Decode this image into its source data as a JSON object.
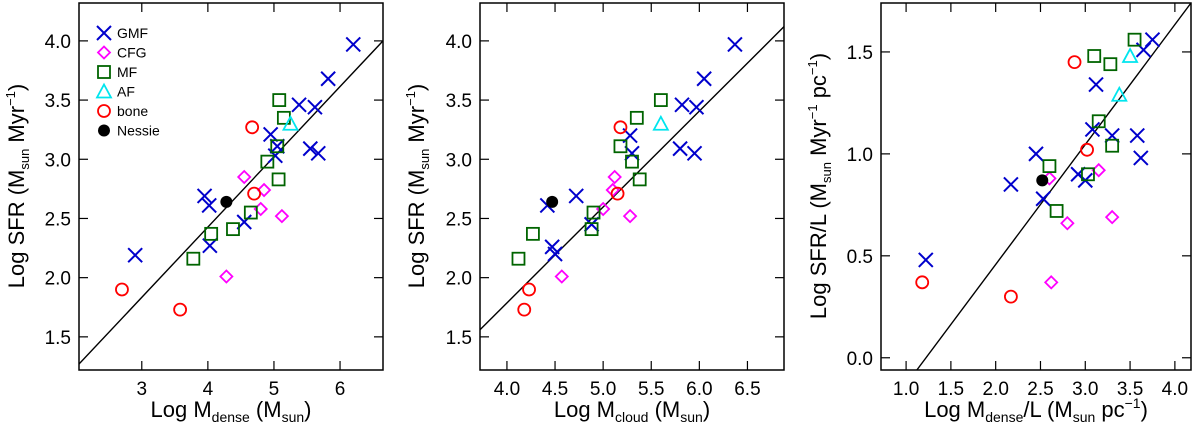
{
  "chart_data": [
    {
      "type": "scatter",
      "xlabel": "Log M_dense (M_sun)",
      "ylabel": "Log SFR (M_sun Myr^-1)",
      "xlim": [
        2.05,
        6.65
      ],
      "ylim": [
        1.22,
        4.32
      ],
      "xticks": [
        3,
        4,
        5,
        6
      ],
      "yticks": [
        1.5,
        2.0,
        2.5,
        3.0,
        3.5,
        4.0
      ],
      "xtick_labels": [
        "3",
        "4",
        "5",
        "6"
      ],
      "ytick_labels": [
        "1.5",
        "2.0",
        "2.5",
        "3.0",
        "3.5",
        "4.0"
      ],
      "fit_line": [
        [
          2.05,
          1.27
        ],
        [
          6.65,
          4.0
        ]
      ],
      "series": [
        {
          "name": "GMF",
          "marker": "x",
          "color": "#0000cc",
          "points": [
            [
              2.9,
              2.19
            ],
            [
              3.95,
              2.69
            ],
            [
              4.02,
              2.61
            ],
            [
              4.03,
              2.27
            ],
            [
              4.55,
              2.47
            ],
            [
              4.95,
              3.21
            ],
            [
              5.02,
              3.03
            ],
            [
              5.05,
              3.11
            ],
            [
              5.38,
              3.46
            ],
            [
              5.55,
              3.09
            ],
            [
              5.62,
              3.44
            ],
            [
              5.67,
              3.05
            ],
            [
              5.82,
              3.68
            ],
            [
              6.2,
              3.97
            ]
          ]
        },
        {
          "name": "CFG",
          "marker": "diamond",
          "color": "#ff00ff",
          "points": [
            [
              4.28,
              2.01
            ],
            [
              4.55,
              2.85
            ],
            [
              4.8,
              2.58
            ],
            [
              4.85,
              2.74
            ],
            [
              5.12,
              2.52
            ]
          ]
        },
        {
          "name": "MF",
          "marker": "square",
          "color": "#006400",
          "points": [
            [
              3.78,
              2.16
            ],
            [
              4.05,
              2.37
            ],
            [
              4.38,
              2.41
            ],
            [
              4.65,
              2.55
            ],
            [
              4.9,
              2.98
            ],
            [
              5.05,
              3.11
            ],
            [
              5.07,
              2.83
            ],
            [
              5.08,
              3.5
            ],
            [
              5.15,
              3.35
            ]
          ]
        },
        {
          "name": "AF",
          "marker": "triangle",
          "color": "#00e5ee",
          "points": [
            [
              5.25,
              3.3
            ]
          ]
        },
        {
          "name": "bone",
          "marker": "circle",
          "color": "#ff0000",
          "points": [
            [
              2.7,
              1.9
            ],
            [
              3.58,
              1.73
            ],
            [
              4.67,
              3.27
            ],
            [
              4.7,
              2.71
            ]
          ]
        },
        {
          "name": "Nessie",
          "marker": "filled-circle",
          "color": "#000000",
          "points": [
            [
              4.28,
              2.64
            ]
          ]
        }
      ],
      "legend": {
        "position": "top-left",
        "entries": [
          {
            "label": "GMF",
            "marker": "x",
            "color": "#0000cc"
          },
          {
            "label": "CFG",
            "marker": "diamond",
            "color": "#ff00ff"
          },
          {
            "label": "MF",
            "marker": "square",
            "color": "#006400"
          },
          {
            "label": "AF",
            "marker": "triangle",
            "color": "#00e5ee"
          },
          {
            "label": "bone",
            "marker": "circle",
            "color": "#ff0000"
          },
          {
            "label": "Nessie",
            "marker": "filled-circle",
            "color": "#000000"
          }
        ]
      }
    },
    {
      "type": "scatter",
      "xlabel": "Log M_cloud (M_sun)",
      "ylabel": "Log SFR (M_sun Myr^-1)",
      "xlim": [
        3.72,
        6.88
      ],
      "ylim": [
        1.22,
        4.32
      ],
      "xticks": [
        4.0,
        4.5,
        5.0,
        5.5,
        6.0,
        6.5
      ],
      "yticks": [
        1.5,
        2.0,
        2.5,
        3.0,
        3.5,
        4.0
      ],
      "xtick_labels": [
        "4.0",
        "4.5",
        "5.0",
        "5.5",
        "6.0",
        "6.5"
      ],
      "ytick_labels": [
        "1.5",
        "2.0",
        "2.5",
        "3.0",
        "3.5",
        "4.0"
      ],
      "fit_line": [
        [
          3.72,
          1.56
        ],
        [
          6.88,
          4.12
        ]
      ],
      "series": [
        {
          "name": "GMF",
          "marker": "x",
          "color": "#0000cc",
          "points": [
            [
              4.42,
              2.61
            ],
            [
              4.47,
              2.26
            ],
            [
              4.5,
              2.2
            ],
            [
              4.72,
              2.69
            ],
            [
              4.88,
              2.45
            ],
            [
              5.28,
              3.2
            ],
            [
              5.3,
              3.05
            ],
            [
              5.8,
              3.09
            ],
            [
              5.82,
              3.46
            ],
            [
              5.97,
              3.44
            ],
            [
              5.95,
              3.05
            ],
            [
              6.05,
              3.68
            ],
            [
              6.37,
              3.97
            ]
          ]
        },
        {
          "name": "CFG",
          "marker": "diamond",
          "color": "#ff00ff",
          "points": [
            [
              4.57,
              2.01
            ],
            [
              5.0,
              2.58
            ],
            [
              5.1,
              2.74
            ],
            [
              5.12,
              2.85
            ],
            [
              5.28,
              2.52
            ]
          ]
        },
        {
          "name": "MF",
          "marker": "square",
          "color": "#006400",
          "points": [
            [
              4.12,
              2.16
            ],
            [
              4.27,
              2.37
            ],
            [
              4.88,
              2.41
            ],
            [
              4.9,
              2.55
            ],
            [
              5.18,
              3.11
            ],
            [
              5.3,
              2.98
            ],
            [
              5.35,
              3.35
            ],
            [
              5.38,
              2.83
            ],
            [
              5.6,
              3.5
            ]
          ]
        },
        {
          "name": "AF",
          "marker": "triangle",
          "color": "#00e5ee",
          "points": [
            [
              5.6,
              3.3
            ]
          ]
        },
        {
          "name": "bone",
          "marker": "circle",
          "color": "#ff0000",
          "points": [
            [
              4.18,
              1.73
            ],
            [
              4.23,
              1.9
            ],
            [
              5.15,
              2.71
            ],
            [
              5.18,
              3.27
            ]
          ]
        },
        {
          "name": "Nessie",
          "marker": "filled-circle",
          "color": "#000000",
          "points": [
            [
              4.47,
              2.64
            ]
          ]
        }
      ]
    },
    {
      "type": "scatter",
      "xlabel": "Log M_dense/L (M_sun pc^-1)",
      "ylabel": "Log SFR/L (M_sun Myr^-1 pc^-1)",
      "xlim": [
        0.72,
        4.18
      ],
      "ylim": [
        -0.06,
        1.74
      ],
      "xticks": [
        1.0,
        1.5,
        2.0,
        2.5,
        3.0,
        3.5,
        4.0
      ],
      "yticks": [
        0.0,
        0.5,
        1.0,
        1.5
      ],
      "xtick_labels": [
        "1.0",
        "1.5",
        "2.0",
        "2.5",
        "3.0",
        "3.5",
        "4.0"
      ],
      "ytick_labels": [
        "0.0",
        "0.5",
        "1.0",
        "1.5"
      ],
      "fit_line": [
        [
          1.12,
          -0.06
        ],
        [
          4.18,
          1.74
        ]
      ],
      "series": [
        {
          "name": "GMF",
          "marker": "x",
          "color": "#0000cc",
          "points": [
            [
              1.22,
              0.48
            ],
            [
              2.17,
              0.85
            ],
            [
              2.45,
              1.0
            ],
            [
              2.53,
              0.78
            ],
            [
              2.92,
              0.9
            ],
            [
              3.0,
              0.87
            ],
            [
              3.08,
              1.12
            ],
            [
              3.12,
              1.34
            ],
            [
              3.3,
              1.09
            ],
            [
              3.58,
              1.09
            ],
            [
              3.62,
              0.98
            ],
            [
              3.65,
              1.51
            ],
            [
              3.75,
              1.56
            ]
          ]
        },
        {
          "name": "CFG",
          "marker": "diamond",
          "color": "#ff00ff",
          "points": [
            [
              2.6,
              0.88
            ],
            [
              2.62,
              0.37
            ],
            [
              2.8,
              0.66
            ],
            [
              3.15,
              0.92
            ],
            [
              3.3,
              0.69
            ]
          ]
        },
        {
          "name": "MF",
          "marker": "square",
          "color": "#006400",
          "points": [
            [
              2.6,
              0.94
            ],
            [
              2.68,
              0.72
            ],
            [
              3.03,
              0.9
            ],
            [
              3.1,
              1.48
            ],
            [
              3.15,
              1.16
            ],
            [
              3.28,
              1.44
            ],
            [
              3.3,
              1.04
            ],
            [
              3.55,
              1.56
            ]
          ]
        },
        {
          "name": "AF",
          "marker": "triangle",
          "color": "#00e5ee",
          "points": [
            [
              3.5,
              1.48
            ],
            [
              3.38,
              1.29
            ]
          ]
        },
        {
          "name": "bone",
          "marker": "circle",
          "color": "#ff0000",
          "points": [
            [
              1.18,
              0.37
            ],
            [
              2.17,
              0.3
            ],
            [
              2.88,
              1.45
            ],
            [
              3.02,
              1.02
            ]
          ]
        },
        {
          "name": "Nessie",
          "marker": "filled-circle",
          "color": "#000000",
          "points": [
            [
              2.52,
              0.87
            ]
          ]
        }
      ]
    }
  ]
}
